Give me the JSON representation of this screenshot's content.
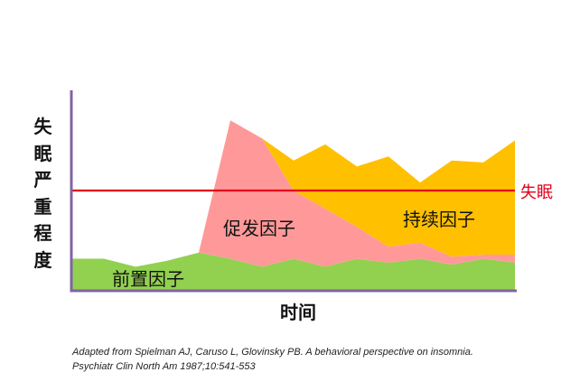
{
  "chart_data": {
    "type": "area",
    "stacked": true,
    "xlabel": "时间",
    "ylabel": "失眠严重程度",
    "ylim": [
      0,
      100
    ],
    "grid": false,
    "legend": "none",
    "axis_color": "#8064a2",
    "series": [
      {
        "name": "前置因子",
        "color": "#92d050",
        "values": [
          16,
          16,
          12,
          15,
          19,
          16,
          12,
          16,
          12,
          16,
          14,
          16,
          13,
          16,
          14
        ]
      },
      {
        "name": "促发因子",
        "color": "#ff9999",
        "values": [
          0,
          0,
          0,
          0,
          0,
          69,
          64,
          34,
          29,
          16,
          8,
          8,
          4,
          2,
          4
        ]
      },
      {
        "name": "持续因子",
        "color": "#ffc000",
        "values": [
          0,
          0,
          0,
          0,
          0,
          0,
          0,
          15,
          32,
          30,
          45,
          30,
          48,
          46,
          57
        ]
      }
    ],
    "threshold": {
      "label": "失眠",
      "value": 50,
      "color": "#e3001b"
    }
  },
  "citation": [
    "Adapted from Spielman AJ, Caruso L, Glovinsky PB. A behavioral perspective on insomnia.",
    "Psychiatr Clin North Am 1987;10:541-553"
  ]
}
